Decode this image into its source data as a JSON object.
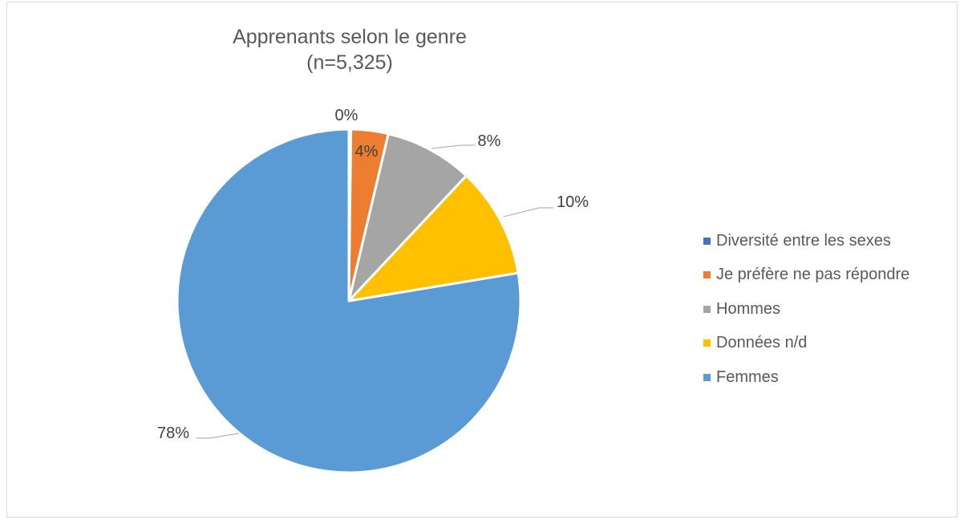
{
  "chart_data": {
    "type": "pie",
    "title": "Apprenants selon le genre",
    "subtitle": "(n=5,325)",
    "legend_position": "right",
    "slices": [
      {
        "name": "Diversité entre les sexes",
        "value": 0.2,
        "label": "0%",
        "color": "#4472C4"
      },
      {
        "name": "Je préfère ne pas répondre",
        "value": 3.5,
        "label": "4%",
        "color": "#ED7D31"
      },
      {
        "name": "Hommes",
        "value": 8.3,
        "label": "8%",
        "color": "#A5A5A5"
      },
      {
        "name": "Données n/d",
        "value": 10.4,
        "label": "10%",
        "color": "#FFC000"
      },
      {
        "name": "Femmes",
        "value": 77.6,
        "label": "78%",
        "color": "#5B9BD5"
      }
    ]
  }
}
